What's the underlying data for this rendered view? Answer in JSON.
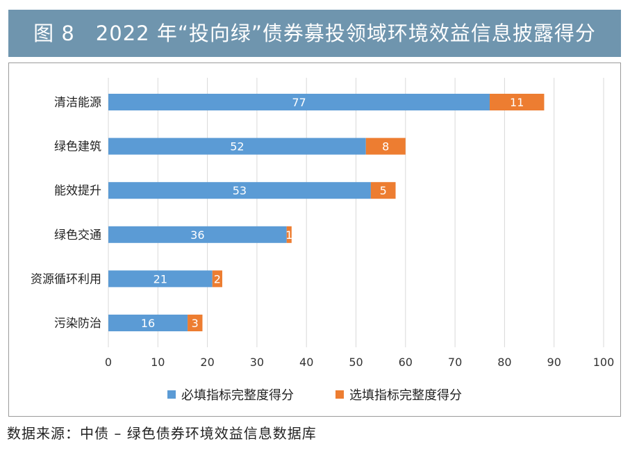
{
  "title": "图 8　2022 年“投向绿”债券募投领域环境效益信息披露得分",
  "source": "数据来源：中债 – 绿色债券环境效益信息数据库",
  "colors": {
    "required": "#5b9bd5",
    "optional": "#ed7d31",
    "title_bg": "#6f95ae"
  },
  "chart_data": {
    "type": "bar",
    "orientation": "horizontal",
    "stacked": true,
    "categories": [
      "清洁能源",
      "绿色建筑",
      "能效提升",
      "绿色交通",
      "资源循环利用",
      "污染防治"
    ],
    "series": [
      {
        "name": "必填指标完整度得分",
        "values": [
          77,
          52,
          53,
          36,
          21,
          16
        ]
      },
      {
        "name": "选填指标完整度得分",
        "values": [
          11,
          8,
          5,
          1,
          2,
          3
        ]
      }
    ],
    "xlim": [
      0,
      100
    ],
    "xticks": [
      0,
      10,
      20,
      30,
      40,
      50,
      60,
      70,
      80,
      90,
      100
    ],
    "grid": true,
    "legend": "bottom"
  }
}
